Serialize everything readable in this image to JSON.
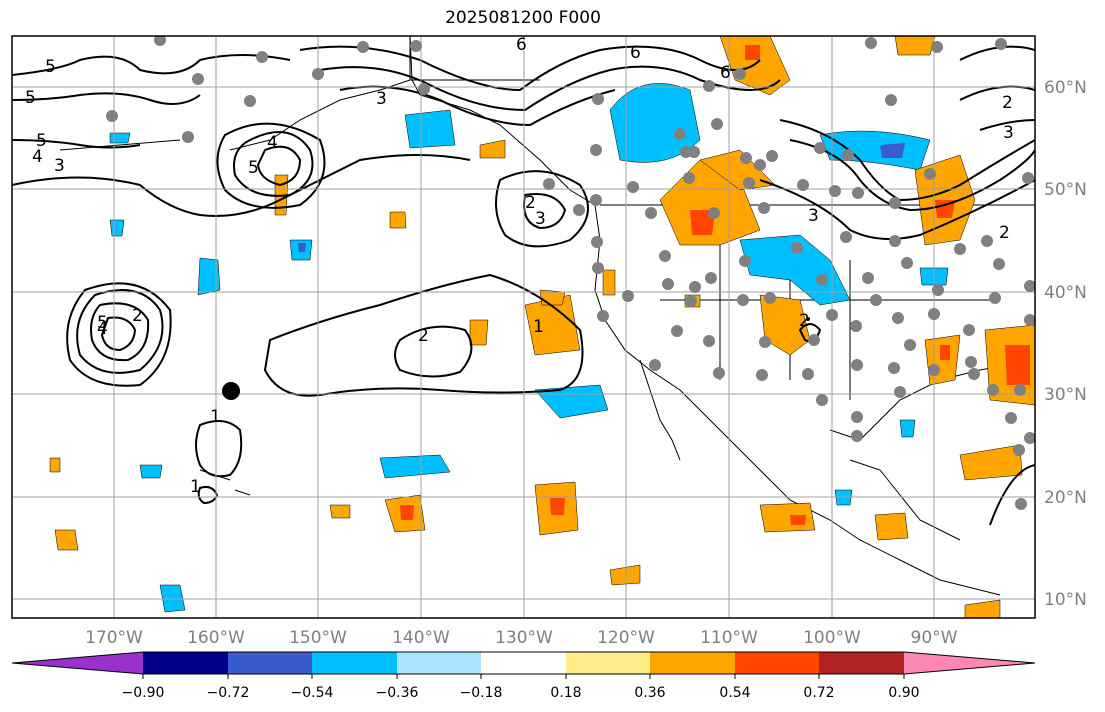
{
  "title": "2025081200 F000",
  "lon_labels": [
    "170°W",
    "160°W",
    "150°W",
    "140°W",
    "130°W",
    "120°W",
    "110°W",
    "100°W",
    "90°W"
  ],
  "lat_labels": [
    "60°N",
    "50°N",
    "40°N",
    "30°N",
    "20°N",
    "10°N"
  ],
  "colorbar": {
    "colors": [
      "#9932cc",
      "#00008b",
      "#3a5bcd",
      "#00bfff",
      "#aee3ff",
      "#ffffff",
      "#ffed8a",
      "#ffa500",
      "#ff4500",
      "#b22222",
      "#ff87b4"
    ],
    "tick_labels": [
      "−0.90",
      "−0.72",
      "−0.54",
      "−0.36",
      "−0.18",
      "0.18",
      "0.36",
      "0.54",
      "0.72",
      "0.90"
    ]
  },
  "contour_labels": [
    "5",
    "5",
    "5",
    "4",
    "3",
    "3",
    "4",
    "5",
    "2",
    "3",
    "2",
    "1",
    "2",
    "1",
    "1",
    "6",
    "6",
    "2",
    "2",
    "2",
    "3",
    "3",
    "4",
    "5",
    "6"
  ],
  "colors": {
    "positive": "#ffa500",
    "negative": "#00bfff",
    "strong_positive": "#ff4500",
    "strong_negative": "#3a5bcd",
    "station": "#808080",
    "grid": "#a0a0a0"
  }
}
